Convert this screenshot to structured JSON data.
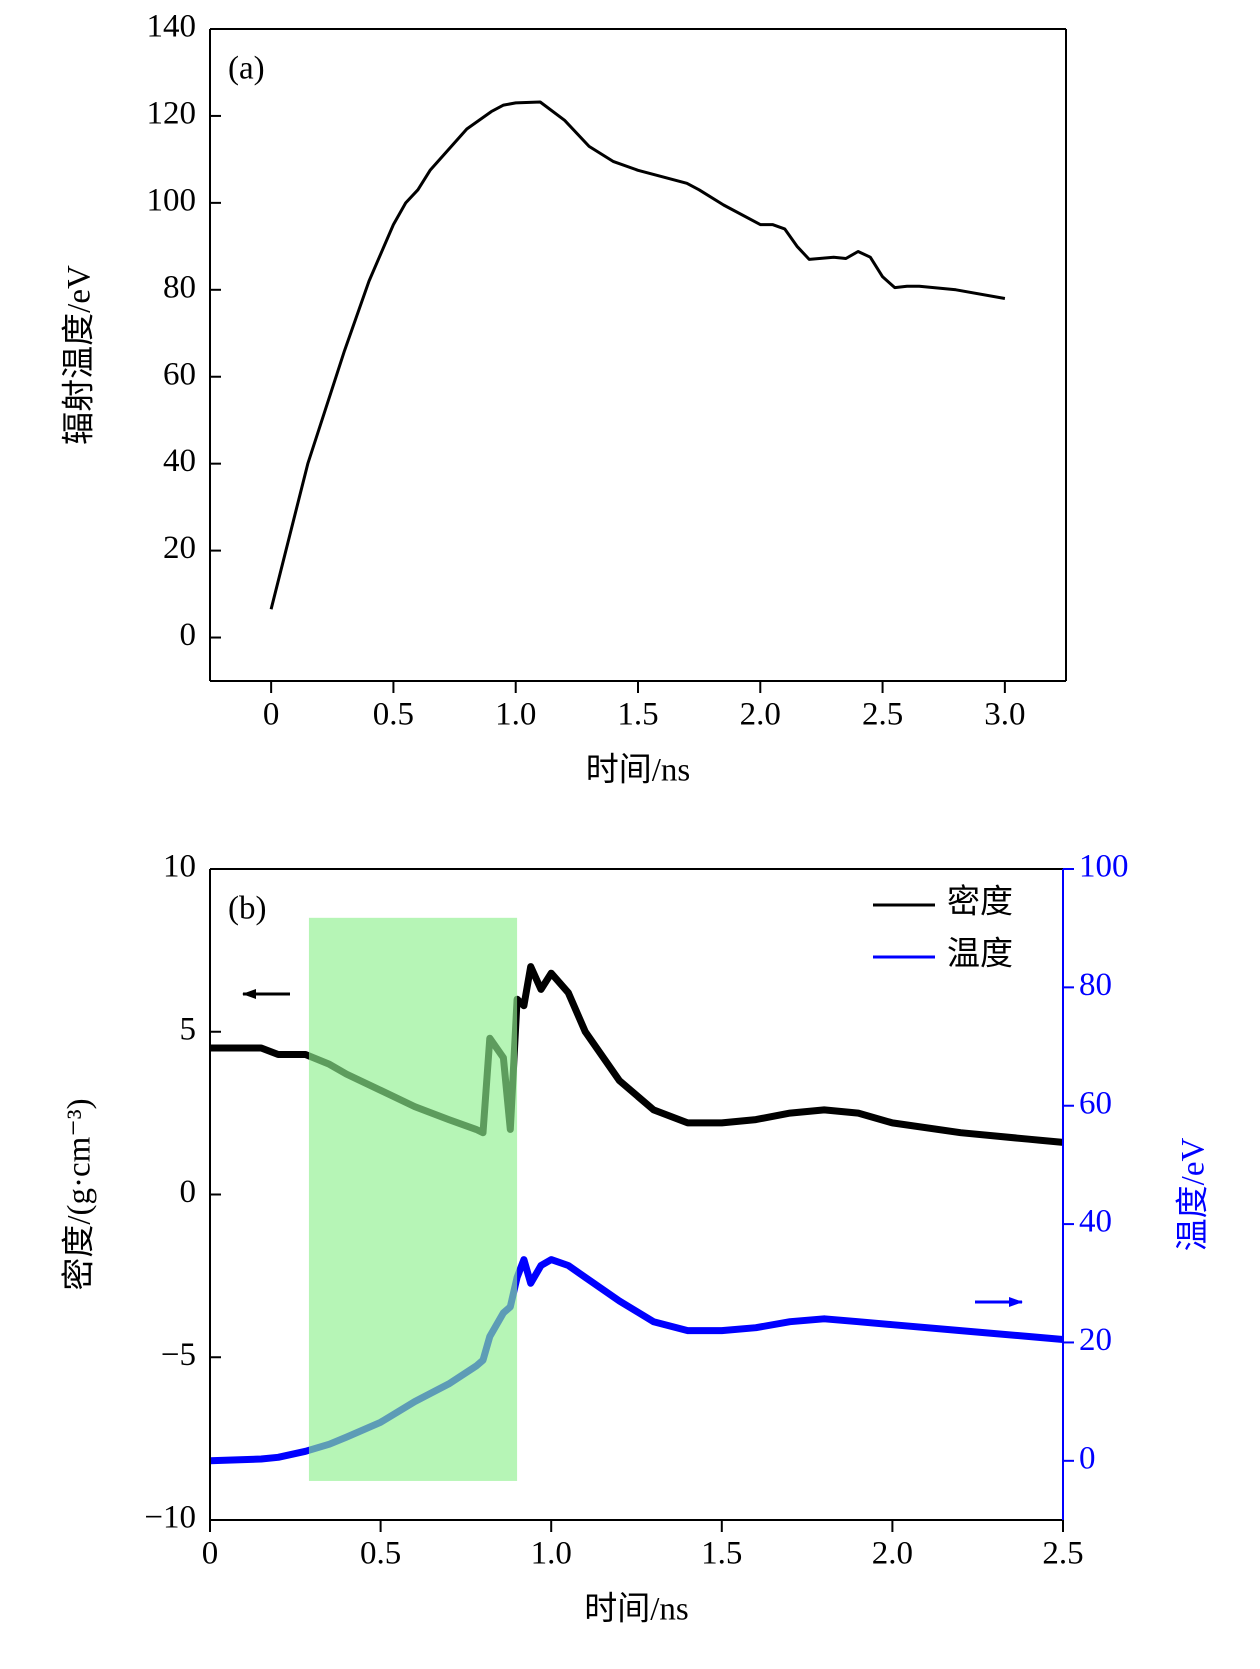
{
  "chart_data": [
    {
      "type": "line",
      "panel_label": "(a)",
      "x_label": "时间/ns",
      "y_label": "辐射温度/eV",
      "xlim": [
        -0.25,
        3.25
      ],
      "ylim": [
        -10,
        140
      ],
      "xticks": [
        0,
        0.5,
        {
          "value": 1,
          "label": "1.0"
        },
        1.5,
        {
          "value": 2,
          "label": "2.0"
        },
        2.5,
        {
          "value": 3,
          "label": "3.0"
        }
      ],
      "yticks": [
        0,
        20,
        40,
        60,
        80,
        100,
        120,
        140
      ],
      "x": [
        0,
        0.15,
        0.3,
        0.4,
        0.5,
        0.55,
        0.6,
        0.65,
        0.8,
        0.9,
        0.95,
        1.0,
        1.1,
        1.2,
        1.3,
        1.4,
        1.5,
        1.6,
        1.7,
        1.75,
        1.85,
        2.0,
        2.05,
        2.1,
        2.15,
        2.2,
        2.3,
        2.35,
        2.4,
        2.45,
        2.5,
        2.55,
        2.6,
        2.65,
        2.8,
        3.0
      ],
      "series": [
        {
          "color": "#000000",
          "values": [
            6.5,
            40,
            66,
            82,
            95,
            100,
            103,
            107.5,
            117,
            121,
            122.5,
            123,
            123.2,
            119,
            113,
            109.5,
            107.5,
            106,
            104.5,
            103,
            99.5,
            95,
            95,
            94,
            90,
            87,
            87.5,
            87.2,
            88.8,
            87.5,
            83,
            80.5,
            80.8,
            80.8,
            80,
            78
          ]
        }
      ]
    },
    {
      "type": "line",
      "panel_label": "(b)",
      "x_label": "时间/ns",
      "y_label": "密度/(g·cm⁻³)",
      "y2_label": "温度/eV",
      "xlim": [
        0,
        2.5
      ],
      "ylim": [
        -10,
        10
      ],
      "y2lim": [
        -10,
        100
      ],
      "xticks": [
        0,
        0.5,
        {
          "value": 1,
          "label": "1.0"
        },
        1.5,
        {
          "value": 2,
          "label": "2.0"
        },
        2.5
      ],
      "yticks": [
        {
          "value": -10,
          "label": "−10"
        },
        {
          "value": -5,
          "label": "−5"
        },
        0,
        5,
        10
      ],
      "y2ticks": [
        0,
        20,
        40,
        60,
        80,
        100
      ],
      "y2_color": "#0000ff",
      "legend": "upper right",
      "highlight": {
        "x": [
          0.29,
          0.9
        ],
        "y": [
          -8.8,
          8.5
        ],
        "color": "#8ff08f"
      },
      "x": [
        0,
        0.15,
        0.2,
        0.28,
        0.35,
        0.4,
        0.5,
        0.6,
        0.7,
        0.78,
        0.8,
        0.82,
        0.86,
        0.88,
        0.9,
        0.92,
        0.94,
        0.97,
        1.0,
        1.05,
        1.1,
        1.2,
        1.3,
        1.4,
        1.5,
        1.6,
        1.7,
        1.8,
        1.9,
        2.0,
        2.2,
        2.4,
        2.5
      ],
      "series": [
        {
          "name": "密度",
          "color": "#000000",
          "values": [
            4.5,
            4.5,
            4.3,
            4.3,
            4.0,
            3.7,
            3.2,
            2.7,
            2.3,
            2.0,
            1.9,
            4.8,
            4.2,
            2.0,
            6.0,
            5.8,
            7.0,
            6.3,
            6.8,
            6.2,
            5.0,
            3.5,
            2.6,
            2.2,
            2.2,
            2.3,
            2.5,
            2.6,
            2.5,
            2.2,
            1.9,
            1.7,
            1.6
          ]
        },
        {
          "name": "温度",
          "color": "#0000ff",
          "axis": "y2",
          "values": [
            0,
            0.3,
            0.6,
            1.6,
            2.8,
            4,
            6.5,
            10,
            13,
            16,
            17,
            21,
            25,
            26,
            31,
            34,
            30,
            33,
            34,
            33,
            31,
            27,
            23.5,
            22,
            22,
            22.5,
            23.5,
            24,
            23.5,
            23,
            22,
            21,
            20.5
          ]
        }
      ]
    }
  ]
}
